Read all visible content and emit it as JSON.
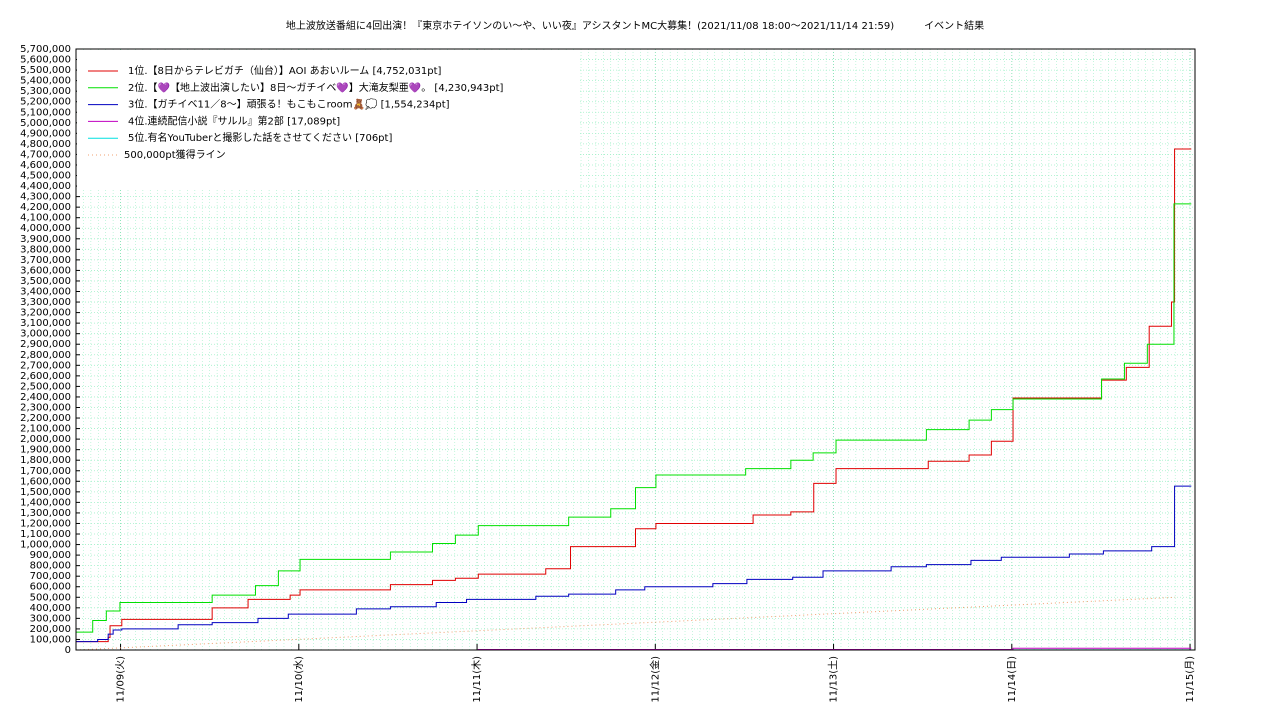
{
  "chart_data": {
    "type": "line",
    "title": "地上波放送番組に4回出演！『東京ホテイソンのい〜や、いい夜』アシスタントMC大募集！(2021/11/08 18:00～2021/11/14 21:59)　　　イベント結果",
    "xlim": [
      "11/08 18:00",
      "11/15 00:40"
    ],
    "xticks": [
      {
        "value": "11/09 00:00",
        "label": "11/09(火)"
      },
      {
        "value": "11/10 00:00",
        "label": "11/10(水)"
      },
      {
        "value": "11/11 00:00",
        "label": "11/11(木)"
      },
      {
        "value": "11/12 00:00",
        "label": "11/12(金)"
      },
      {
        "value": "11/13 00:00",
        "label": "11/13(土)"
      },
      {
        "value": "11/14 00:00",
        "label": "11/14(日)"
      },
      {
        "value": "11/15 00:00",
        "label": "11/15(月)"
      }
    ],
    "ylim": [
      0,
      5700000
    ],
    "yticks": [
      0,
      {
        "value": 100000,
        "label": "100,000"
      },
      {
        "value": 200000,
        "label": "200,000"
      },
      {
        "value": 300000,
        "label": "300,000"
      },
      {
        "value": 400000,
        "label": "400,000"
      },
      {
        "value": 500000,
        "label": "500,000"
      },
      {
        "value": 600000,
        "label": "600,000"
      },
      {
        "value": 700000,
        "label": "700,000"
      },
      {
        "value": 800000,
        "label": "800,000"
      },
      {
        "value": 900000,
        "label": "900,000"
      },
      {
        "value": 1000000,
        "label": "1,000,000"
      },
      {
        "value": 1100000,
        "label": "1,100,000"
      },
      {
        "value": 1200000,
        "label": "1,200,000"
      },
      {
        "value": 1300000,
        "label": "1,300,000"
      },
      {
        "value": 1400000,
        "label": "1,400,000"
      },
      {
        "value": 1500000,
        "label": "1,500,000"
      },
      {
        "value": 1600000,
        "label": "1,600,000"
      },
      {
        "value": 1700000,
        "label": "1,700,000"
      },
      {
        "value": 1800000,
        "label": "1,800,000"
      },
      {
        "value": 1900000,
        "label": "1,900,000"
      },
      {
        "value": 2000000,
        "label": "2,000,000"
      },
      {
        "value": 2100000,
        "label": "2,100,000"
      },
      {
        "value": 2200000,
        "label": "2,200,000"
      },
      {
        "value": 2300000,
        "label": "2,300,000"
      },
      {
        "value": 2400000,
        "label": "2,400,000"
      },
      {
        "value": 2500000,
        "label": "2,500,000"
      },
      {
        "value": 2600000,
        "label": "2,600,000"
      },
      {
        "value": 2700000,
        "label": "2,700,000"
      },
      {
        "value": 2800000,
        "label": "2,800,000"
      },
      {
        "value": 2900000,
        "label": "2,900,000"
      },
      {
        "value": 3000000,
        "label": "3,000,000"
      },
      {
        "value": 3100000,
        "label": "3,100,000"
      },
      {
        "value": 3200000,
        "label": "3,200,000"
      },
      {
        "value": 3300000,
        "label": "3,300,000"
      },
      {
        "value": 3400000,
        "label": "3,400,000"
      },
      {
        "value": 3500000,
        "label": "3,500,000"
      },
      {
        "value": 3600000,
        "label": "3,600,000"
      },
      {
        "value": 3700000,
        "label": "3,700,000"
      },
      {
        "value": 3800000,
        "label": "3,800,000"
      },
      {
        "value": 3900000,
        "label": "3,900,000"
      },
      {
        "value": 4000000,
        "label": "4,000,000"
      },
      {
        "value": 4100000,
        "label": "4,100,000"
      },
      {
        "value": 4200000,
        "label": "4,200,000"
      },
      {
        "value": 4300000,
        "label": "4,300,000"
      },
      {
        "value": 4400000,
        "label": "4,400,000"
      },
      {
        "value": 4500000,
        "label": "4,500,000"
      },
      {
        "value": 4600000,
        "label": "4,600,000"
      },
      {
        "value": 4700000,
        "label": "4,700,000"
      },
      {
        "value": 4800000,
        "label": "4,800,000"
      },
      {
        "value": 4900000,
        "label": "4,900,000"
      },
      {
        "value": 5000000,
        "label": "5,000,000"
      },
      {
        "value": 5100000,
        "label": "5,100,000"
      },
      {
        "value": 5200000,
        "label": "5,200,000"
      },
      {
        "value": 5300000,
        "label": "5,300,000"
      },
      {
        "value": 5400000,
        "label": "5,400,000"
      },
      {
        "value": 5500000,
        "label": "5,500,000"
      },
      {
        "value": 5600000,
        "label": "5,600,000"
      },
      {
        "value": 5700000,
        "label": "5,700,000"
      }
    ],
    "grid": true,
    "legend": "upper left",
    "series": [
      {
        "name": "1位.【8日からテレビガチ（仙台）】AOI あおいルーム [4,752,031pt]",
        "color": "#e00000",
        "style": "step",
        "x": [
          "11/08 18:00",
          "11/08 22:20",
          "11/08 22:35",
          "11/09 00:10",
          "11/09 12:20",
          "11/09 17:10",
          "11/09 22:50",
          "11/10 00:10",
          "11/10 12:20",
          "11/10 18:00",
          "11/10 21:05",
          "11/11 00:10",
          "11/11 09:15",
          "11/11 12:35",
          "11/11 21:20",
          "11/12 00:05",
          "11/12 13:10",
          "11/12 18:15",
          "11/12 21:20",
          "11/13 00:20",
          "11/13 12:45",
          "11/13 18:15",
          "11/13 21:15",
          "11/14 00:10",
          "11/14 12:05",
          "11/14 15:25",
          "11/14 18:30",
          "11/14 21:30",
          "11/14 21:55",
          "11/15 00:10"
        ],
        "values": [
          80000,
          120000,
          230000,
          290000,
          400000,
          480000,
          520000,
          570000,
          620000,
          660000,
          680000,
          720000,
          770000,
          980000,
          1150000,
          1200000,
          1280000,
          1310000,
          1580000,
          1720000,
          1790000,
          1850000,
          1980000,
          2390000,
          2560000,
          2680000,
          3070000,
          3300000,
          4752031,
          4752031
        ]
      },
      {
        "name": "2位.【💜【地上波出演したい】8日〜ガチイベ💜】大滝友梨亜💜。 [4,230,943pt]",
        "color": "#00e000",
        "style": "step",
        "x": [
          "11/08 18:00",
          "11/08 20:15",
          "11/08 22:05",
          "11/08 23:55",
          "11/09 12:20",
          "11/09 18:10",
          "11/09 21:15",
          "11/10 00:10",
          "11/10 12:20",
          "11/10 18:00",
          "11/10 21:05",
          "11/11 00:10",
          "11/11 12:20",
          "11/11 18:00",
          "11/11 21:20",
          "11/12 00:05",
          "11/12 12:10",
          "11/12 18:15",
          "11/12 21:15",
          "11/13 00:20",
          "11/13 12:30",
          "11/13 18:15",
          "11/13 21:15",
          "11/14 00:10",
          "11/14 12:05",
          "11/14 15:10",
          "11/14 18:15",
          "11/14 21:50",
          "11/15 00:10"
        ],
        "values": [
          170000,
          280000,
          370000,
          450000,
          520000,
          610000,
          750000,
          860000,
          930000,
          1010000,
          1090000,
          1180000,
          1260000,
          1340000,
          1540000,
          1660000,
          1720000,
          1800000,
          1870000,
          1990000,
          2090000,
          2180000,
          2280000,
          2380000,
          2570000,
          2720000,
          2900000,
          4230943,
          4230943
        ]
      },
      {
        "name": "3位.【ガチイベ11／8〜】頑張る！もこもこroom🧸💭 [1,554,234pt]",
        "color": "#0000c0",
        "style": "step",
        "x": [
          "11/08 18:00",
          "11/08 20:55",
          "11/08 22:20",
          "11/08 23:00",
          "11/09 00:10",
          "11/09 07:45",
          "11/09 12:20",
          "11/09 18:30",
          "11/09 22:35",
          "11/10 07:45",
          "11/10 12:20",
          "11/10 18:30",
          "11/10 22:35",
          "11/11 07:55",
          "11/11 12:20",
          "11/11 18:40",
          "11/11 22:35",
          "11/12 07:45",
          "11/12 12:20",
          "11/12 18:30",
          "11/12 22:35",
          "11/13 07:45",
          "11/13 12:30",
          "11/13 18:30",
          "11/13 22:35",
          "11/14 07:45",
          "11/14 12:20",
          "11/14 18:50",
          "11/14 21:55",
          "11/15 00:10"
        ],
        "values": [
          80000,
          100000,
          150000,
          190000,
          200000,
          240000,
          260000,
          300000,
          340000,
          390000,
          410000,
          450000,
          480000,
          510000,
          530000,
          570000,
          600000,
          630000,
          670000,
          690000,
          750000,
          790000,
          810000,
          850000,
          880000,
          910000,
          940000,
          980000,
          1554234,
          1554234
        ]
      },
      {
        "name": "4位.連続配信小説『サルル』第2部 [17,089pt]",
        "color": "#c000c0",
        "style": "step",
        "x": [
          "11/08 18:00",
          "11/11 00:10",
          "11/14 00:10",
          "11/15 00:10"
        ],
        "values": [
          0,
          5000,
          17089,
          17089
        ]
      },
      {
        "name": "5位.有名YouTuberと撮影した話をさせてください [706pt]",
        "color": "#00e0e0",
        "style": "step",
        "x": [
          "11/08 18:00",
          "11/11 00:10",
          "11/14 00:10",
          "11/15 00:10"
        ],
        "values": [
          0,
          300,
          706,
          706
        ]
      },
      {
        "name": "500,000pt獲得ライン",
        "color": "#f0a070",
        "style": "dotted",
        "x": [
          "11/08 18:00",
          "11/14 22:00"
        ],
        "values": [
          0,
          500000
        ]
      }
    ]
  }
}
